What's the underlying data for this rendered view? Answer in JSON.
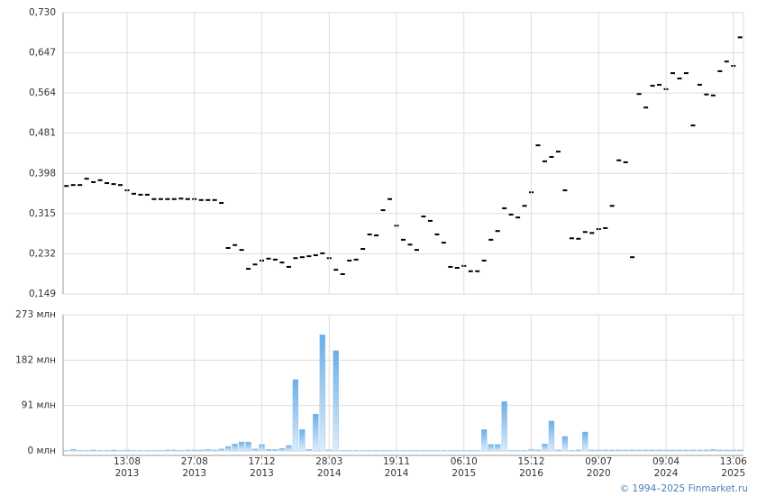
{
  "chart_data": [
    {
      "type": "price",
      "color": "#000000",
      "values": [
        0.372,
        0.374,
        0.374,
        0.387,
        0.38,
        0.384,
        0.378,
        0.376,
        0.374,
        0.363,
        0.356,
        0.354,
        0.354,
        0.345,
        0.345,
        0.345,
        0.345,
        0.346,
        0.345,
        0.345,
        0.343,
        0.343,
        0.343,
        0.337,
        0.244,
        0.25,
        0.24,
        0.201,
        0.21,
        0.218,
        0.222,
        0.22,
        0.214,
        0.205,
        0.223,
        0.225,
        0.227,
        0.229,
        0.233,
        0.223,
        0.199,
        0.19,
        0.218,
        0.22,
        0.242,
        0.272,
        0.27,
        0.322,
        0.345,
        0.29,
        0.261,
        0.251,
        0.24,
        0.309,
        0.3,
        0.272,
        0.255,
        0.205,
        0.203,
        0.207,
        0.196,
        0.196,
        0.218,
        0.261,
        0.279,
        0.326,
        0.313,
        0.307,
        0.331,
        0.359,
        0.456,
        0.423,
        0.432,
        0.443,
        0.363,
        0.264,
        0.263,
        0.277,
        0.275,
        0.283,
        0.285,
        0.331,
        0.425,
        0.421,
        0.225,
        0.562,
        0.534,
        0.579,
        0.581,
        0.572,
        0.605,
        0.594,
        0.605,
        0.497,
        0.581,
        0.561,
        0.559,
        0.609,
        0.629,
        0.62,
        0.679
      ],
      "ylim": [
        0.149,
        0.73
      ],
      "yticks": [
        {
          "value": 0.149,
          "label": "0,149"
        },
        {
          "value": 0.232,
          "label": "0,232"
        },
        {
          "value": 0.315,
          "label": "0,315"
        },
        {
          "value": 0.398,
          "label": "0,398"
        },
        {
          "value": 0.481,
          "label": "0,481"
        },
        {
          "value": 0.564,
          "label": "0,564"
        },
        {
          "value": 0.647,
          "label": "0,647"
        },
        {
          "value": 0.73,
          "label": "0,730"
        }
      ],
      "grid": true
    },
    {
      "type": "bar",
      "color": "#7ab8ec",
      "categories": [
        null,
        null,
        null,
        null,
        null,
        null,
        null,
        null,
        null,
        "13.08 2013",
        null,
        null,
        null,
        null,
        null,
        null,
        null,
        null,
        null,
        "27.08 2013",
        null,
        null,
        null,
        null,
        null,
        null,
        null,
        null,
        null,
        "17.12 2013",
        null,
        null,
        null,
        null,
        null,
        null,
        null,
        null,
        null,
        "28.03 2014",
        null,
        null,
        null,
        null,
        null,
        null,
        null,
        null,
        null,
        "19.11 2014",
        null,
        null,
        null,
        null,
        null,
        null,
        null,
        null,
        null,
        "06.10 2015",
        null,
        null,
        null,
        null,
        null,
        null,
        null,
        null,
        null,
        "15.12 2016",
        null,
        null,
        null,
        null,
        null,
        null,
        null,
        null,
        null,
        "09.07 2020",
        null,
        null,
        null,
        null,
        null,
        null,
        null,
        null,
        null,
        "09.04 2024",
        null,
        null,
        null,
        null,
        null,
        null,
        null,
        null,
        null,
        "13.06 2025",
        null
      ],
      "values": [
        1,
        3,
        1,
        1,
        2,
        1,
        1,
        2,
        1,
        2,
        1,
        1,
        1,
        1,
        1,
        2,
        2,
        1,
        2,
        2,
        2,
        3,
        2,
        4,
        9,
        14,
        18,
        18,
        4,
        13,
        3,
        3,
        5,
        11,
        143,
        43,
        3,
        74,
        233,
        2,
        201,
        1,
        1,
        1,
        1,
        1,
        1,
        1,
        1,
        1,
        1,
        1,
        1,
        1,
        1,
        1,
        1,
        1,
        1,
        1,
        1,
        1,
        43,
        13,
        13,
        99,
        1,
        1,
        1,
        3,
        2,
        14,
        60,
        2,
        29,
        1,
        2,
        38,
        2,
        2,
        2,
        2,
        2,
        2,
        2,
        2,
        2,
        2,
        2,
        2,
        2,
        2,
        2,
        2,
        2,
        2,
        3,
        2,
        2,
        2,
        2
      ],
      "ylim": [
        0,
        273
      ],
      "yticks": [
        {
          "value": 0,
          "label": "0 млн"
        },
        {
          "value": 91,
          "label": "91 млн"
        },
        {
          "value": 182,
          "label": "182 млн"
        },
        {
          "value": 273,
          "label": "273 млн"
        }
      ],
      "grid": true
    }
  ],
  "footer": "© 1994–2025 Finmarket.ru"
}
